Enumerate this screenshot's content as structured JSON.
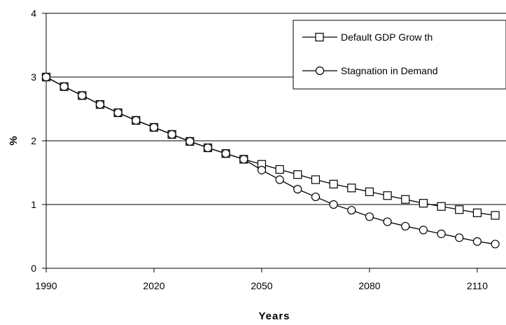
{
  "chart_data": {
    "type": "line",
    "xlabel": "Years",
    "ylabel": "%",
    "xlim": [
      1990,
      2118
    ],
    "ylim": [
      0,
      4
    ],
    "x_ticks": [
      1990,
      2020,
      2050,
      2080,
      2110
    ],
    "y_ticks": [
      0,
      1,
      2,
      3,
      4
    ],
    "grid": "horizontal",
    "legend_position": "top-right",
    "x": [
      1990,
      1995,
      2000,
      2005,
      2010,
      2015,
      2020,
      2025,
      2030,
      2035,
      2040,
      2045,
      2050,
      2055,
      2060,
      2065,
      2070,
      2075,
      2080,
      2085,
      2090,
      2095,
      2100,
      2105,
      2110,
      2115
    ],
    "series": [
      {
        "name": "Default GDP Grow th",
        "marker": "square",
        "values": [
          3.0,
          2.85,
          2.71,
          2.57,
          2.44,
          2.32,
          2.21,
          2.1,
          1.99,
          1.89,
          1.8,
          1.71,
          1.63,
          1.55,
          1.47,
          1.39,
          1.32,
          1.26,
          1.2,
          1.14,
          1.08,
          1.02,
          0.97,
          0.92,
          0.87,
          0.83
        ]
      },
      {
        "name": "Stagnation in Demand",
        "marker": "circle",
        "values": [
          3.0,
          2.85,
          2.71,
          2.57,
          2.44,
          2.32,
          2.21,
          2.1,
          1.99,
          1.89,
          1.8,
          1.71,
          1.54,
          1.39,
          1.24,
          1.12,
          1.0,
          0.91,
          0.81,
          0.73,
          0.66,
          0.6,
          0.54,
          0.48,
          0.42,
          0.38
        ]
      }
    ]
  }
}
